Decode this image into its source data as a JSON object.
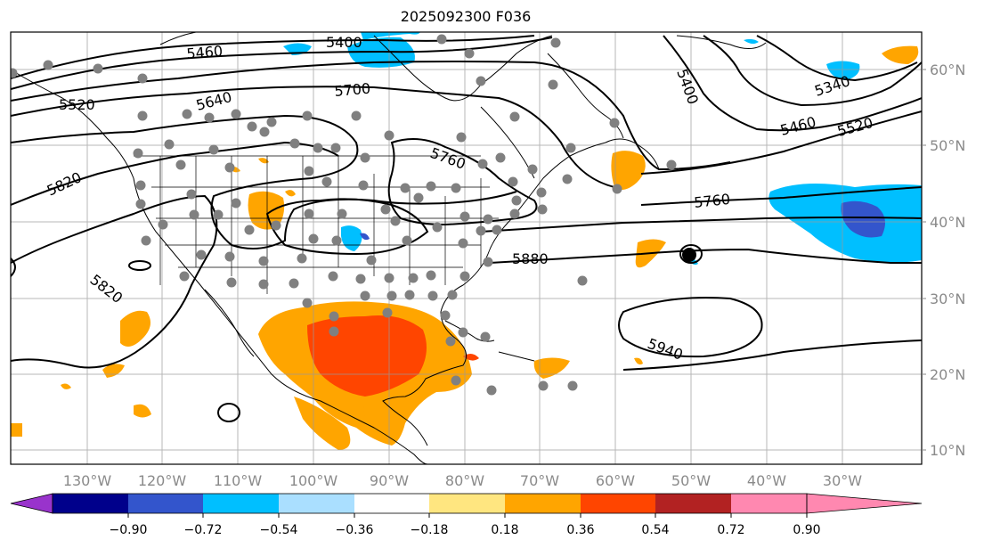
{
  "title": "2025092300 F036",
  "lat_labels": [
    "10°N",
    "20°N",
    "30°N",
    "40°N",
    "50°N",
    "60°N"
  ],
  "lon_labels": [
    "130°W",
    "120°W",
    "110°W",
    "100°W",
    "90°W",
    "80°W",
    "70°W",
    "60°W",
    "50°W",
    "40°W",
    "30°W"
  ],
  "colorbar": {
    "ticks": [
      "−0.90",
      "−0.72",
      "−0.54",
      "−0.36",
      "−0.18",
      "0.18",
      "0.36",
      "0.54",
      "0.72",
      "0.90"
    ],
    "colors": [
      "#9933cc",
      "#00008b",
      "#3355cc",
      "#00bfff",
      "#aadfff",
      "#ffffff",
      "#ffe680",
      "#ffa500",
      "#ff4500",
      "#b22222",
      "#ff88b0"
    ]
  },
  "contour_labels": [
    "5400",
    "5460",
    "5520",
    "5640",
    "5700",
    "5760",
    "5820",
    "5820",
    "5880",
    "5940",
    "5400",
    "5340",
    "5460",
    "5520",
    "5760"
  ]
}
